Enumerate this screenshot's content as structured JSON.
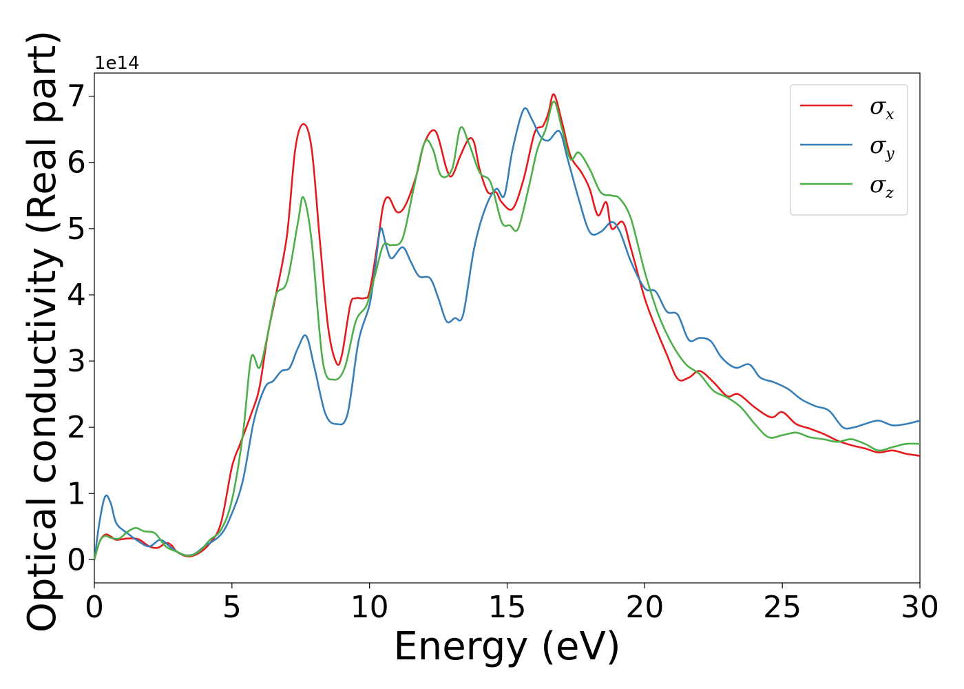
{
  "chart_data": {
    "type": "line",
    "xlabel": "Energy (eV)",
    "ylabel": "Optical conductivity (Real part)",
    "y_offset_label": "1e14",
    "xlim": [
      0,
      30
    ],
    "ylim": [
      -0.35,
      7.35
    ],
    "x_ticks": [
      0,
      5,
      10,
      15,
      20,
      25,
      30
    ],
    "y_ticks": [
      0,
      1,
      2,
      3,
      4,
      5,
      6,
      7
    ],
    "x_tick_labels": [
      "0",
      "5",
      "10",
      "15",
      "20",
      "25",
      "30"
    ],
    "y_tick_labels": [
      "0",
      "1",
      "2",
      "3",
      "4",
      "5",
      "6",
      "7"
    ],
    "legend_position": "top-right",
    "grid": false,
    "series": [
      {
        "name": "σ",
        "subscript": "x",
        "color": "#e41a1c",
        "points": [
          [
            0,
            0
          ],
          [
            0.2,
            0.28
          ],
          [
            0.4,
            0.38
          ],
          [
            0.6,
            0.35
          ],
          [
            0.8,
            0.3
          ],
          [
            1.2,
            0.32
          ],
          [
            1.6,
            0.31
          ],
          [
            2.0,
            0.2
          ],
          [
            2.3,
            0.18
          ],
          [
            2.6,
            0.25
          ],
          [
            2.8,
            0.22
          ],
          [
            3.0,
            0.12
          ],
          [
            3.4,
            0.05
          ],
          [
            3.8,
            0.1
          ],
          [
            4.2,
            0.25
          ],
          [
            4.6,
            0.55
          ],
          [
            5.0,
            1.4
          ],
          [
            5.3,
            1.75
          ],
          [
            5.7,
            2.2
          ],
          [
            6.0,
            2.6
          ],
          [
            6.3,
            3.4
          ],
          [
            6.6,
            4.0
          ],
          [
            7.0,
            4.9
          ],
          [
            7.3,
            6.2
          ],
          [
            7.6,
            6.58
          ],
          [
            7.9,
            6.2
          ],
          [
            8.2,
            4.8
          ],
          [
            8.5,
            3.5
          ],
          [
            8.8,
            2.97
          ],
          [
            9.0,
            3.1
          ],
          [
            9.3,
            3.85
          ],
          [
            9.5,
            3.95
          ],
          [
            9.8,
            3.95
          ],
          [
            10.0,
            4.05
          ],
          [
            10.3,
            4.8
          ],
          [
            10.5,
            5.35
          ],
          [
            10.7,
            5.47
          ],
          [
            11.0,
            5.25
          ],
          [
            11.3,
            5.35
          ],
          [
            11.7,
            5.8
          ],
          [
            12.0,
            6.3
          ],
          [
            12.4,
            6.47
          ],
          [
            12.8,
            5.9
          ],
          [
            13.0,
            5.8
          ],
          [
            13.3,
            6.1
          ],
          [
            13.6,
            6.35
          ],
          [
            13.8,
            6.3
          ],
          [
            14.0,
            5.9
          ],
          [
            14.3,
            5.55
          ],
          [
            14.6,
            5.55
          ],
          [
            14.8,
            5.4
          ],
          [
            15.2,
            5.3
          ],
          [
            15.6,
            5.75
          ],
          [
            16.0,
            6.45
          ],
          [
            16.3,
            6.55
          ],
          [
            16.5,
            6.75
          ],
          [
            16.7,
            7.03
          ],
          [
            17.0,
            6.6
          ],
          [
            17.3,
            6.1
          ],
          [
            17.7,
            5.85
          ],
          [
            18.0,
            5.6
          ],
          [
            18.3,
            5.2
          ],
          [
            18.6,
            5.4
          ],
          [
            18.8,
            5.0
          ],
          [
            19.2,
            5.1
          ],
          [
            19.5,
            4.7
          ],
          [
            20.0,
            3.95
          ],
          [
            20.4,
            3.5
          ],
          [
            20.8,
            3.1
          ],
          [
            21.2,
            2.73
          ],
          [
            21.6,
            2.75
          ],
          [
            22.0,
            2.85
          ],
          [
            22.5,
            2.68
          ],
          [
            23.0,
            2.47
          ],
          [
            23.4,
            2.5
          ],
          [
            24.0,
            2.3
          ],
          [
            24.6,
            2.15
          ],
          [
            25.0,
            2.23
          ],
          [
            25.5,
            2.05
          ],
          [
            26.0,
            1.98
          ],
          [
            26.5,
            1.9
          ],
          [
            27.0,
            1.8
          ],
          [
            27.5,
            1.73
          ],
          [
            28.0,
            1.68
          ],
          [
            28.5,
            1.62
          ],
          [
            29.0,
            1.65
          ],
          [
            29.5,
            1.6
          ],
          [
            30.0,
            1.57
          ]
        ]
      },
      {
        "name": "σ",
        "subscript": "y",
        "color": "#377eb8",
        "points": [
          [
            0,
            0
          ],
          [
            0.2,
            0.6
          ],
          [
            0.4,
            0.96
          ],
          [
            0.6,
            0.85
          ],
          [
            0.8,
            0.55
          ],
          [
            1.2,
            0.4
          ],
          [
            1.6,
            0.28
          ],
          [
            2.0,
            0.2
          ],
          [
            2.4,
            0.3
          ],
          [
            2.8,
            0.18
          ],
          [
            3.2,
            0.08
          ],
          [
            3.6,
            0.08
          ],
          [
            4.0,
            0.2
          ],
          [
            4.6,
            0.38
          ],
          [
            5.0,
            0.7
          ],
          [
            5.4,
            1.2
          ],
          [
            5.8,
            2.1
          ],
          [
            6.2,
            2.6
          ],
          [
            6.5,
            2.7
          ],
          [
            6.8,
            2.85
          ],
          [
            7.1,
            2.9
          ],
          [
            7.4,
            3.2
          ],
          [
            7.7,
            3.38
          ],
          [
            8.0,
            2.9
          ],
          [
            8.4,
            2.2
          ],
          [
            8.8,
            2.05
          ],
          [
            9.2,
            2.2
          ],
          [
            9.6,
            3.3
          ],
          [
            10.0,
            3.85
          ],
          [
            10.2,
            4.4
          ],
          [
            10.4,
            5.0
          ],
          [
            10.6,
            4.75
          ],
          [
            10.8,
            4.55
          ],
          [
            11.2,
            4.72
          ],
          [
            11.5,
            4.5
          ],
          [
            11.8,
            4.28
          ],
          [
            12.2,
            4.25
          ],
          [
            12.5,
            3.95
          ],
          [
            12.8,
            3.6
          ],
          [
            13.1,
            3.65
          ],
          [
            13.4,
            3.7
          ],
          [
            13.8,
            4.7
          ],
          [
            14.2,
            5.3
          ],
          [
            14.6,
            5.6
          ],
          [
            14.9,
            5.5
          ],
          [
            15.2,
            6.2
          ],
          [
            15.6,
            6.8
          ],
          [
            15.9,
            6.65
          ],
          [
            16.2,
            6.4
          ],
          [
            16.5,
            6.33
          ],
          [
            16.9,
            6.47
          ],
          [
            17.2,
            6.05
          ],
          [
            17.6,
            5.45
          ],
          [
            18.0,
            4.95
          ],
          [
            18.4,
            4.95
          ],
          [
            18.8,
            5.1
          ],
          [
            19.1,
            4.95
          ],
          [
            19.5,
            4.5
          ],
          [
            20.0,
            4.1
          ],
          [
            20.4,
            4.05
          ],
          [
            20.8,
            3.75
          ],
          [
            21.2,
            3.7
          ],
          [
            21.6,
            3.32
          ],
          [
            22.0,
            3.35
          ],
          [
            22.4,
            3.3
          ],
          [
            22.8,
            3.05
          ],
          [
            23.3,
            2.9
          ],
          [
            23.8,
            2.95
          ],
          [
            24.2,
            2.75
          ],
          [
            24.7,
            2.68
          ],
          [
            25.2,
            2.58
          ],
          [
            25.7,
            2.42
          ],
          [
            26.2,
            2.32
          ],
          [
            26.7,
            2.25
          ],
          [
            27.2,
            2.0
          ],
          [
            27.6,
            2.0
          ],
          [
            28.0,
            2.05
          ],
          [
            28.5,
            2.1
          ],
          [
            29.0,
            2.03
          ],
          [
            29.5,
            2.05
          ],
          [
            30.0,
            2.1
          ]
        ]
      },
      {
        "name": "σ",
        "subscript": "z",
        "color": "#4daf4a",
        "points": [
          [
            0,
            0
          ],
          [
            0.2,
            0.28
          ],
          [
            0.4,
            0.36
          ],
          [
            0.6,
            0.33
          ],
          [
            0.9,
            0.32
          ],
          [
            1.2,
            0.42
          ],
          [
            1.5,
            0.48
          ],
          [
            1.8,
            0.43
          ],
          [
            2.2,
            0.4
          ],
          [
            2.6,
            0.2
          ],
          [
            3.0,
            0.12
          ],
          [
            3.4,
            0.06
          ],
          [
            3.8,
            0.12
          ],
          [
            4.2,
            0.3
          ],
          [
            4.6,
            0.45
          ],
          [
            5.0,
            0.9
          ],
          [
            5.4,
            1.9
          ],
          [
            5.7,
            3.05
          ],
          [
            6.0,
            2.9
          ],
          [
            6.3,
            3.4
          ],
          [
            6.6,
            4.0
          ],
          [
            7.0,
            4.2
          ],
          [
            7.4,
            5.1
          ],
          [
            7.6,
            5.47
          ],
          [
            7.9,
            4.8
          ],
          [
            8.3,
            3.0
          ],
          [
            8.7,
            2.72
          ],
          [
            9.1,
            2.9
          ],
          [
            9.5,
            3.6
          ],
          [
            9.9,
            3.85
          ],
          [
            10.2,
            4.3
          ],
          [
            10.5,
            4.75
          ],
          [
            10.8,
            4.75
          ],
          [
            11.2,
            4.85
          ],
          [
            11.6,
            5.6
          ],
          [
            12.0,
            6.3
          ],
          [
            12.3,
            6.2
          ],
          [
            12.6,
            5.8
          ],
          [
            13.0,
            5.9
          ],
          [
            13.3,
            6.52
          ],
          [
            13.6,
            6.3
          ],
          [
            14.0,
            5.85
          ],
          [
            14.4,
            5.7
          ],
          [
            14.8,
            5.1
          ],
          [
            15.1,
            5.05
          ],
          [
            15.4,
            5.0
          ],
          [
            15.8,
            5.65
          ],
          [
            16.1,
            6.2
          ],
          [
            16.4,
            6.5
          ],
          [
            16.7,
            6.92
          ],
          [
            17.0,
            6.5
          ],
          [
            17.3,
            6.05
          ],
          [
            17.6,
            6.15
          ],
          [
            18.0,
            5.9
          ],
          [
            18.4,
            5.55
          ],
          [
            18.8,
            5.5
          ],
          [
            19.1,
            5.45
          ],
          [
            19.5,
            5.15
          ],
          [
            20.0,
            4.35
          ],
          [
            20.5,
            3.7
          ],
          [
            21.0,
            3.25
          ],
          [
            21.5,
            2.95
          ],
          [
            22.0,
            2.8
          ],
          [
            22.5,
            2.55
          ],
          [
            23.0,
            2.45
          ],
          [
            23.5,
            2.3
          ],
          [
            24.0,
            2.05
          ],
          [
            24.5,
            1.85
          ],
          [
            25.0,
            1.88
          ],
          [
            25.5,
            1.92
          ],
          [
            26.0,
            1.85
          ],
          [
            26.5,
            1.82
          ],
          [
            27.0,
            1.78
          ],
          [
            27.5,
            1.82
          ],
          [
            28.0,
            1.75
          ],
          [
            28.5,
            1.65
          ],
          [
            29.0,
            1.7
          ],
          [
            29.5,
            1.75
          ],
          [
            30.0,
            1.75
          ]
        ]
      }
    ]
  }
}
